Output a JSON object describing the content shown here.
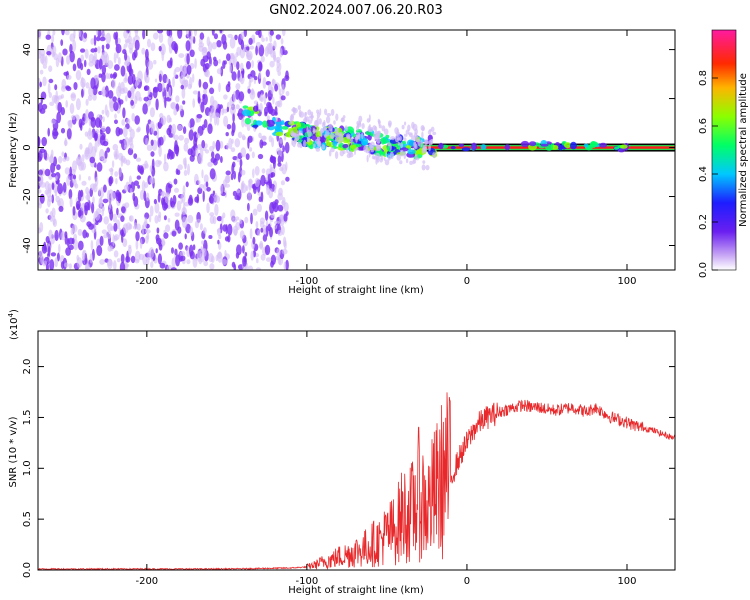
{
  "title": "GN02.2024.007.06.20.R03",
  "colors": {
    "noise": "#7b2ff0",
    "noise_light": "#d3bdf7",
    "snr_line": "#e8282a",
    "carrier": "#ff1a1a",
    "frame": "#000000"
  },
  "chart_data": [
    {
      "type": "heatmap",
      "title": "GN02.2024.007.06.20.R03",
      "xlabel": "Height of straight line (km)",
      "ylabel": "Frequency (Hz)",
      "xlim": [
        -268,
        130
      ],
      "ylim": [
        -50,
        48
      ],
      "x_ticks": [
        -200,
        -100,
        0,
        100
      ],
      "x_tick_labels": [
        "-200",
        "-100",
        "0",
        "100"
      ],
      "y_ticks": [
        -40,
        -20,
        0,
        20,
        40
      ],
      "y_tick_labels": [
        "-40",
        "-20",
        "0",
        "20",
        "40"
      ],
      "grid": false,
      "noise_region_x": [
        -268,
        -112
      ],
      "carrier_frequency_hz": 0,
      "track": [
        {
          "x": -140,
          "y": 14
        },
        {
          "x": -110,
          "y": 7
        },
        {
          "x": -100,
          "y": 5
        },
        {
          "x": -90,
          "y": 4
        },
        {
          "x": -80,
          "y": 4
        },
        {
          "x": -70,
          "y": 3
        },
        {
          "x": -60,
          "y": 2
        },
        {
          "x": -50,
          "y": 1
        },
        {
          "x": -40,
          "y": 0
        },
        {
          "x": -20,
          "y": 0
        },
        {
          "x": 0,
          "y": 0
        },
        {
          "x": 60,
          "y": 1
        },
        {
          "x": 100,
          "y": 0
        }
      ],
      "colorbar": {
        "label": "Normalized spectral amplitude",
        "range": [
          0,
          1
        ],
        "ticks": [
          0.0,
          0.2,
          0.4,
          0.6,
          0.8
        ],
        "tick_labels": [
          "0.0",
          "0.2",
          "0.4",
          "0.6",
          "0.8"
        ]
      }
    },
    {
      "type": "line",
      "xlabel": "Height of straight line (km)",
      "ylabel": "SNR (10 * v/v)",
      "y_multiplier_label": "(x10",
      "y_multiplier_exp": "4",
      "y_multiplier_close": ")",
      "xlim": [
        -268,
        130
      ],
      "ylim": [
        0,
        2.35
      ],
      "x_ticks": [
        -200,
        -100,
        0,
        100
      ],
      "x_tick_labels": [
        "-200",
        "-100",
        "0",
        "100"
      ],
      "y_ticks": [
        0.0,
        0.5,
        1.0,
        1.5,
        2.0
      ],
      "y_tick_labels": [
        "0.0",
        "0.5",
        "1.0",
        "1.5",
        "2.0"
      ],
      "grid": false,
      "series": [
        {
          "x": [
            -268,
            -200,
            -150,
            -110,
            -100,
            -95,
            -90,
            -85,
            -80,
            -75,
            -70,
            -65,
            -60,
            -55,
            -50,
            -45,
            -40,
            -35,
            -30,
            -25,
            -20,
            -15,
            -12,
            -10,
            -5,
            0,
            5,
            10,
            15,
            20,
            25,
            30,
            35,
            40,
            45,
            50,
            55,
            60,
            65,
            70,
            75,
            80,
            85,
            90,
            95,
            100,
            105,
            110,
            115,
            120,
            125,
            130
          ],
          "values": [
            0.01,
            0.01,
            0.01,
            0.02,
            0.03,
            0.05,
            0.08,
            0.1,
            0.13,
            0.15,
            0.18,
            0.2,
            0.25,
            0.28,
            0.35,
            0.4,
            0.55,
            0.55,
            0.75,
            0.6,
            0.75,
            0.9,
            0.95,
            0.9,
            1.1,
            1.25,
            1.4,
            1.48,
            1.52,
            1.55,
            1.58,
            1.6,
            1.62,
            1.6,
            1.6,
            1.58,
            1.57,
            1.58,
            1.6,
            1.58,
            1.55,
            1.6,
            1.55,
            1.5,
            1.48,
            1.45,
            1.42,
            1.4,
            1.38,
            1.35,
            1.32,
            1.3
          ]
        }
      ]
    }
  ]
}
